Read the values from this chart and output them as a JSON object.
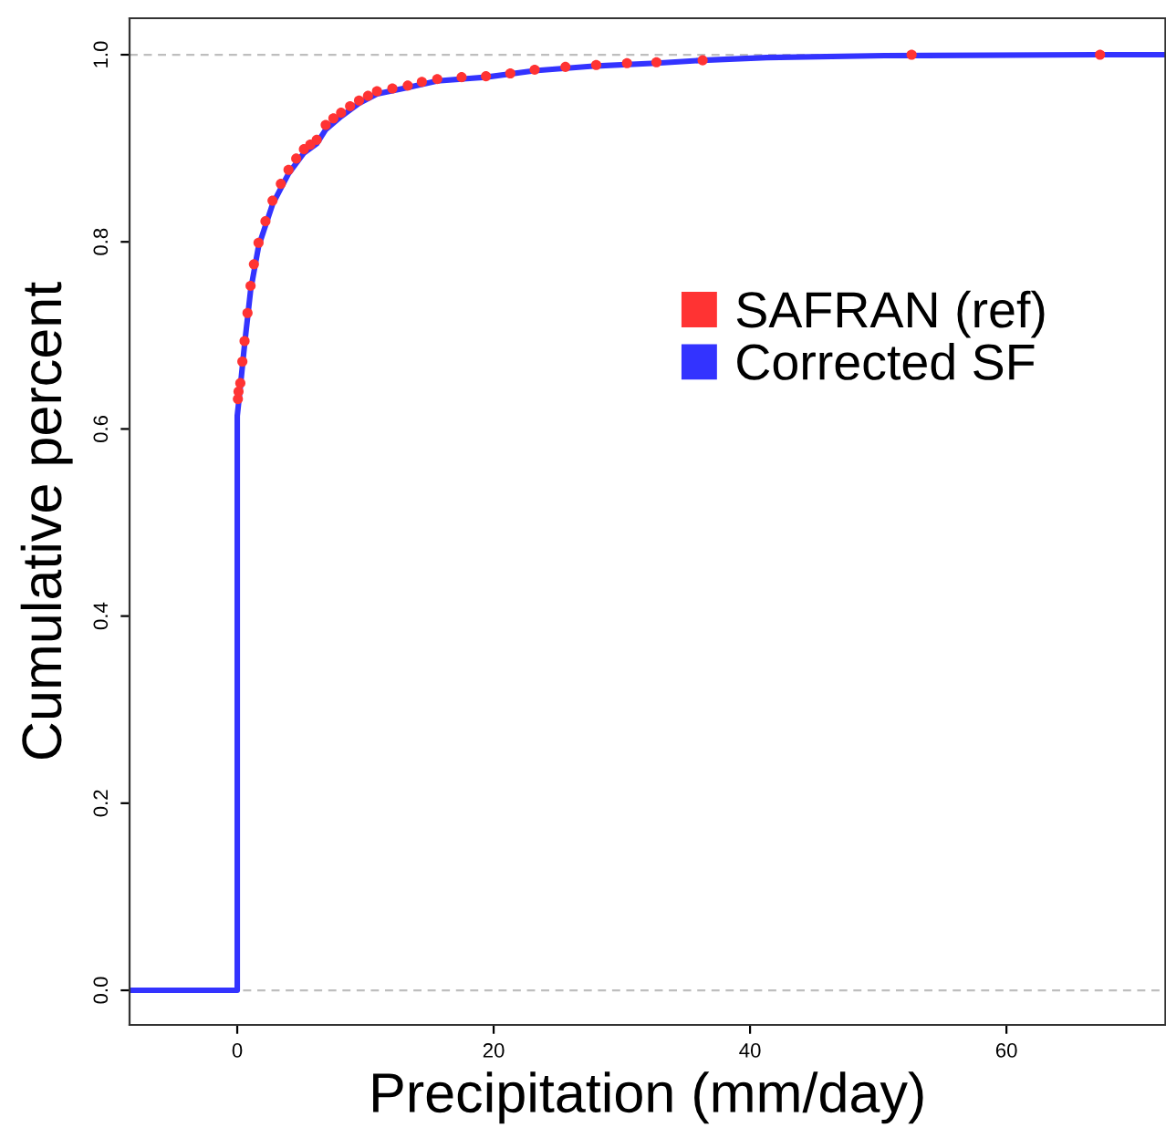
{
  "chart_data": {
    "type": "line",
    "xlabel": "Precipitation (mm/day)",
    "ylabel": "Cumulative percent",
    "xlim": [
      -8.4,
      72.4
    ],
    "ylim": [
      -0.037,
      1.039
    ],
    "xticks": [
      0,
      20,
      40,
      60
    ],
    "yticks": [
      {
        "value": 0,
        "label": "0.0"
      },
      {
        "value": 0.2,
        "label": "0.2"
      },
      {
        "value": 0.4,
        "label": "0.4"
      },
      {
        "value": 0.6,
        "label": "0.6"
      },
      {
        "value": 0.8,
        "label": "0.8"
      },
      {
        "value": 1,
        "label": "1.0"
      }
    ],
    "grid": false,
    "legend": "right",
    "ref_lines": [
      {
        "axis": "y",
        "value": 0,
        "color": "#bebebe",
        "line_style": "dashed"
      },
      {
        "axis": "y",
        "value": 1,
        "color": "#bebebe",
        "line_style": "dashed"
      }
    ],
    "series": [
      {
        "name": "Corrected SF",
        "color": "#3333ff",
        "x": [
          -8.4,
          0,
          0,
          0.24,
          0.57,
          1.04,
          1.66,
          2.75,
          4.0,
          5.2,
          6.2,
          6.9,
          8.1,
          9.5,
          10.9,
          13.3,
          15.6,
          19.4,
          23.2,
          28,
          32.7,
          36.3,
          41.3,
          50.5,
          66.9,
          72.4
        ],
        "values": [
          0,
          0,
          0.614,
          0.645,
          0.69,
          0.748,
          0.795,
          0.84,
          0.873,
          0.895,
          0.905,
          0.92,
          0.934,
          0.948,
          0.958,
          0.965,
          0.972,
          0.976,
          0.983,
          0.988,
          0.991,
          0.994,
          0.997,
          0.999,
          1.0,
          1.0
        ]
      },
      {
        "name": "SAFRAN (ref)",
        "color": "#ff3333",
        "type": "scatter",
        "marker": "circle",
        "x": [
          0.05,
          0.1,
          0.24,
          0.4,
          0.57,
          0.8,
          1.04,
          1.3,
          1.66,
          2.2,
          2.75,
          3.4,
          4.0,
          4.6,
          5.2,
          5.7,
          6.2,
          6.9,
          7.5,
          8.1,
          8.8,
          9.5,
          10.2,
          10.9,
          12.1,
          13.3,
          14.4,
          15.6,
          17.5,
          19.4,
          21.3,
          23.2,
          25.6,
          28,
          30.4,
          32.7,
          36.3,
          52.6,
          67.3
        ],
        "values": [
          0.632,
          0.64,
          0.649,
          0.672,
          0.694,
          0.724,
          0.753,
          0.776,
          0.799,
          0.822,
          0.844,
          0.862,
          0.877,
          0.889,
          0.899,
          0.904,
          0.909,
          0.925,
          0.932,
          0.938,
          0.945,
          0.951,
          0.956,
          0.961,
          0.964,
          0.967,
          0.971,
          0.974,
          0.976,
          0.977,
          0.98,
          0.984,
          0.987,
          0.989,
          0.991,
          0.992,
          0.994,
          1.0,
          1.0
        ]
      }
    ]
  }
}
